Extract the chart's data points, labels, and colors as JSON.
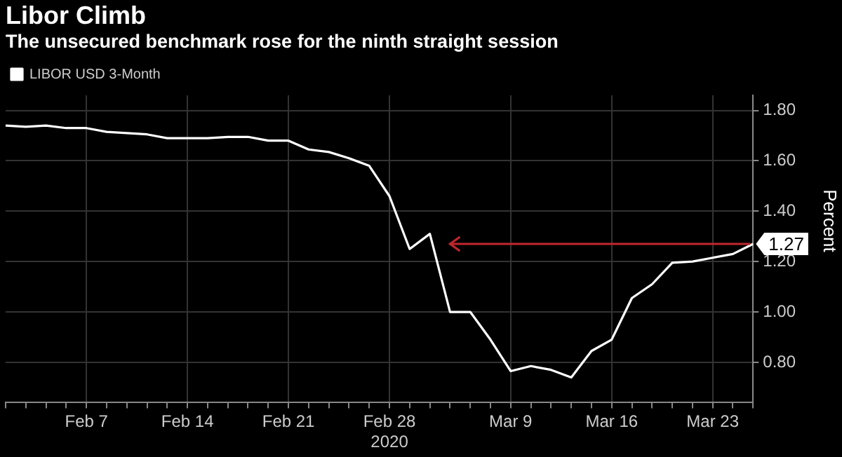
{
  "chart_data": {
    "type": "line",
    "title": "Libor Climb",
    "subtitle": "The unsecured benchmark rose for the ninth straight session",
    "ylabel": "Percent",
    "categories": [
      null,
      null,
      null,
      null,
      "Feb 7",
      null,
      null,
      null,
      null,
      "Feb 14",
      null,
      null,
      null,
      null,
      "Feb 21",
      null,
      null,
      null,
      null,
      "Feb 28\n2020",
      null,
      null,
      null,
      null,
      null,
      "Mar 9",
      null,
      null,
      null,
      null,
      "Mar 16",
      null,
      null,
      null,
      null,
      "Mar 23",
      null,
      null
    ],
    "series": [
      {
        "name": "LIBOR USD 3-Month",
        "color": "#ffffff",
        "values": [
          1.74,
          1.735,
          1.74,
          1.73,
          1.73,
          1.715,
          1.71,
          1.705,
          1.69,
          1.69,
          1.69,
          1.695,
          1.695,
          1.68,
          1.68,
          1.645,
          1.635,
          1.61,
          1.58,
          1.46,
          1.25,
          1.31,
          1.0,
          1.0,
          0.89,
          0.765,
          0.785,
          0.77,
          0.74,
          0.845,
          0.89,
          1.055,
          1.11,
          1.195,
          1.2,
          1.215,
          1.23,
          1.27
        ],
        "value_labels": [
          null,
          null,
          null,
          null,
          null,
          null,
          null,
          null,
          null,
          null,
          null,
          null,
          null,
          null,
          null,
          null,
          null,
          null,
          null,
          null,
          null,
          null,
          null,
          null,
          null,
          null,
          null,
          null,
          null,
          null,
          null,
          null,
          null,
          null,
          null,
          null,
          null,
          "1.27"
        ]
      }
    ],
    "ylim": [
      0.64,
      1.86
    ],
    "yticks": [
      {
        "value": 1.8,
        "label": "1.80"
      },
      {
        "value": 1.6,
        "label": "1.60"
      },
      {
        "value": 1.4,
        "label": "1.40"
      },
      {
        "value": 1.2,
        "label": "1.20"
      },
      {
        "value": 1.0,
        "label": "1.00"
      },
      {
        "value": 0.8,
        "label": "0.80"
      }
    ],
    "grid": true,
    "legend": "top left",
    "marker": "none",
    "line_style": "solid"
  }
}
